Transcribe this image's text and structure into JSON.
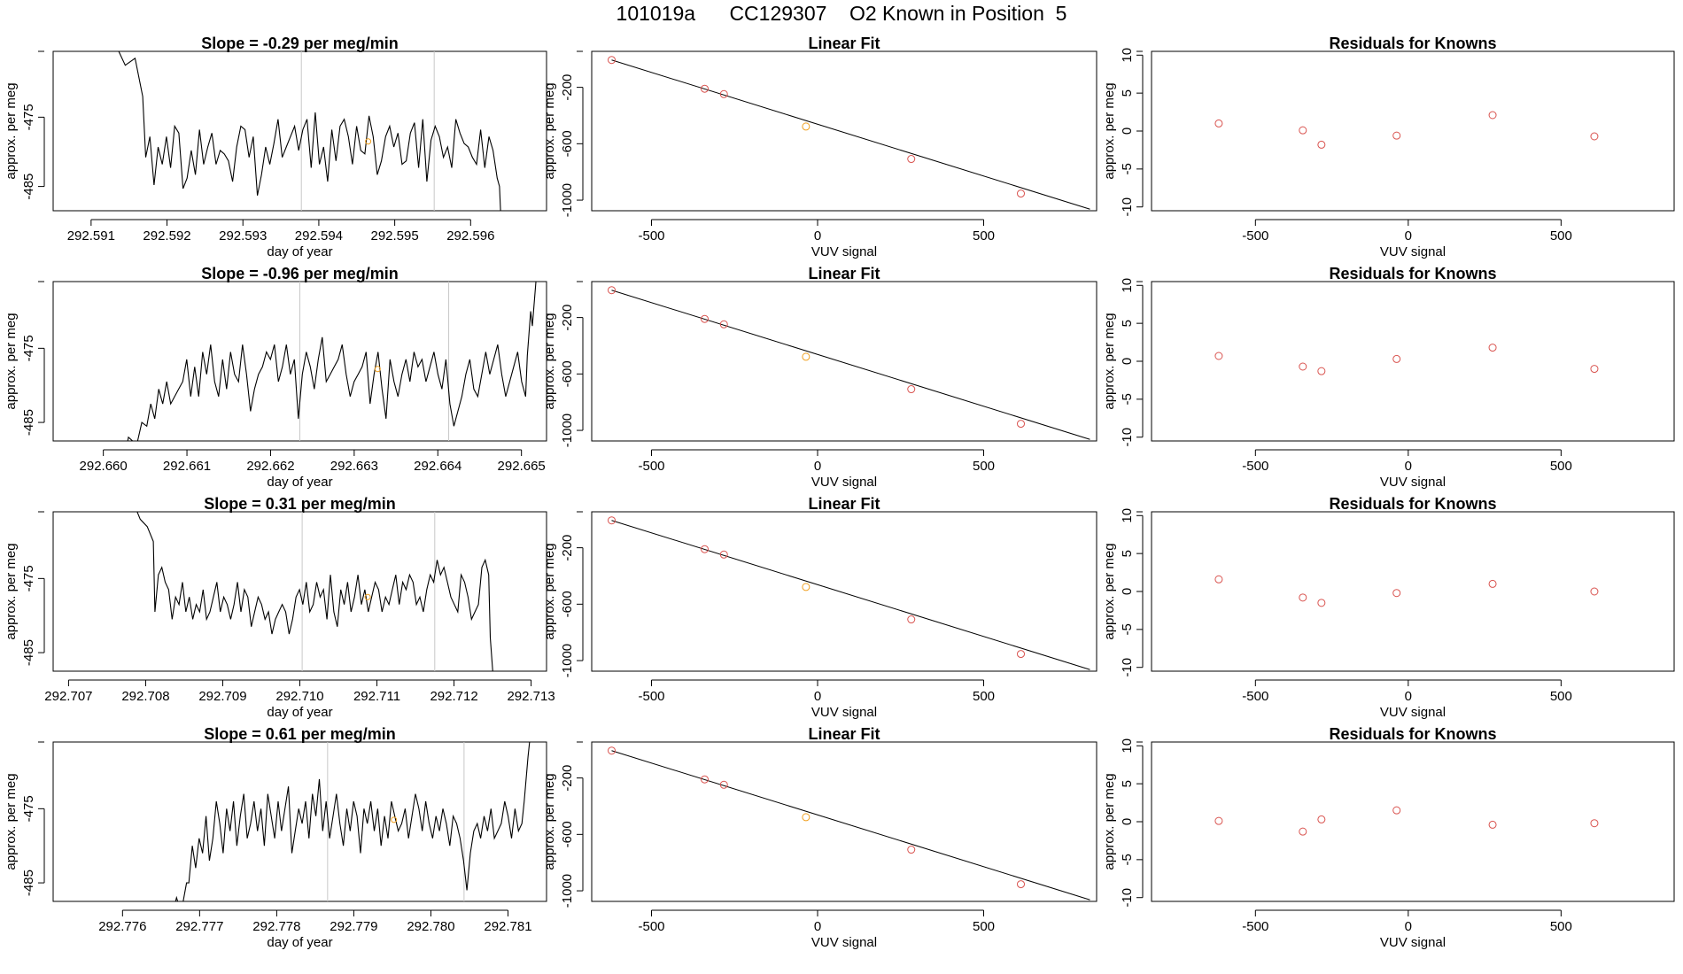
{
  "figure": {
    "run_id": "101019a",
    "cylinder": "CC129307",
    "known_label": "O2 Known in Position  5"
  },
  "colors": {
    "line": "#000000",
    "known": "#d9534f",
    "unknown": "#f0a020",
    "marker": "#c8c8c8"
  },
  "chart_data": [
    {
      "type": "line",
      "row": 0,
      "panel": "timeseries",
      "title_prefix": "Slope = ",
      "slope": "-0.29",
      "title_suffix": " per meg/min",
      "xlabel": "day of year",
      "ylabel": "approx. per meg",
      "xlim": [
        292.5905,
        292.597
      ],
      "ylim": [
        -488.5,
        -465.5
      ],
      "xticks": [
        "292.591",
        "292.592",
        "292.593",
        "292.594",
        "292.595",
        "292.596"
      ],
      "yticks": [
        -475,
        -485
      ],
      "vlines": [
        292.59377,
        292.59552
      ],
      "x_start": 292.5913,
      "x_end": 292.5965,
      "series_start": 292.59172,
      "series_end": 292.59635,
      "center": -478.3,
      "deviations": [
        -2.5,
        0.5,
        -6.5,
        -1,
        -3.5,
        0.5,
        -4,
        2,
        1,
        -7,
        -5.5,
        -1.5,
        -5,
        1.5,
        -3.5,
        -1,
        1,
        -3.5,
        -1.5,
        -2,
        -3,
        -6,
        -1,
        2,
        1.5,
        -2.5,
        0.5,
        -8,
        -5,
        -1,
        -3.5,
        -0.5,
        3,
        -2.5,
        -1,
        0.5,
        2,
        -1.5,
        1.5,
        3,
        -4,
        4,
        -3.5,
        -1,
        -6,
        1.5,
        -3,
        2,
        3,
        0.5,
        -3.5,
        2,
        -1.5,
        -2,
        3.5,
        0.5,
        -5,
        -3,
        0.5,
        2,
        -1,
        1,
        -3.5,
        -3,
        1,
        2.5,
        -4,
        3,
        -6,
        0,
        2,
        0.5,
        -2.5,
        -1,
        -4,
        3,
        1,
        -0.5,
        -1,
        -2.5,
        -3.5,
        1.5,
        -4,
        0.5,
        -1.5,
        -5.5
      ],
      "unknown_point": [
        292.59465,
        -478.5
      ],
      "pre": [
        [
          292.5913,
          -464
        ],
        [
          292.59145,
          -467.5
        ],
        [
          292.59158,
          -466.5
        ],
        [
          292.59168,
          -472
        ]
      ],
      "post": [
        [
          292.59638,
          -485
        ],
        [
          292.5964,
          -490
        ]
      ]
    },
    {
      "type": "scatter",
      "row": 0,
      "panel": "linear_fit",
      "title": "Linear Fit",
      "xlabel": "VUV signal",
      "ylabel": "approx. per meg",
      "xlim": [
        -680,
        840
      ],
      "ylim": [
        -1075,
        55
      ],
      "xticks": [
        -500,
        0,
        500
      ],
      "yticks": [
        -200,
        -600,
        -1000
      ],
      "fit_line": [
        [
          -620,
          -6
        ],
        [
          820,
          -1064
        ]
      ],
      "known_x": [
        -620,
        -340,
        -282,
        282,
        612
      ],
      "known_y": [
        -6,
        -210,
        -248,
        -708,
        -953
      ],
      "unknown": [
        -35,
        -478
      ]
    },
    {
      "type": "scatter",
      "row": 0,
      "panel": "residuals",
      "title": "Residuals for Knowns",
      "xlabel": "VUV signal",
      "ylabel": "approx. per meg",
      "xlim": [
        -840,
        870
      ],
      "ylim": [
        -10.5,
        10.5
      ],
      "xticks": [
        -500,
        0,
        500
      ],
      "yticks": [
        10,
        5,
        0,
        -5,
        -10
      ],
      "known_x": [
        -620,
        -345,
        -284,
        276,
        609
      ],
      "known_y": [
        1.0,
        0.1,
        -1.8,
        2.1,
        -0.7
      ],
      "unknown": [
        -38,
        -0.6
      ]
    },
    {
      "type": "line",
      "row": 1,
      "panel": "timeseries",
      "title_prefix": "Slope = ",
      "slope": "-0.96",
      "title_suffix": " per meg/min",
      "xlabel": "day of year",
      "ylabel": "approx. per meg",
      "xlim": [
        292.6594,
        292.6653
      ],
      "ylim": [
        -487.5,
        -466.0
      ],
      "xticks": [
        "292.660",
        "292.661",
        "292.662",
        "292.663",
        "292.664",
        "292.665"
      ],
      "yticks": [
        -475,
        -485
      ],
      "vlines": [
        292.66235,
        292.66413
      ],
      "x_start": 292.66025,
      "x_end": 292.66518,
      "series_start": 292.66052,
      "series_end": 292.66505,
      "center": -477.5,
      "deviations": [
        -8,
        -5,
        -7,
        -3,
        -5,
        -2,
        -5,
        -4,
        -3,
        -2,
        1,
        -4,
        0,
        -4,
        2,
        -1,
        3,
        -2,
        -4,
        1,
        -3,
        2,
        -1,
        -2,
        3,
        -1,
        -6,
        -3,
        -1,
        0,
        2,
        1,
        3,
        -2,
        0,
        3,
        -1,
        1,
        -7,
        -1,
        2,
        0,
        -3,
        1,
        4,
        -2,
        -1,
        0,
        1,
        3,
        -1,
        -4,
        -2,
        -1,
        0,
        2,
        -5,
        -1,
        2,
        -3,
        -7,
        1,
        -2,
        -4,
        -1,
        1,
        -2,
        2,
        0,
        1,
        -2,
        0,
        2,
        -1,
        -3,
        1,
        -5,
        -8,
        -6,
        -4,
        -1,
        1,
        -3,
        -4,
        -1,
        2,
        -1,
        1,
        3,
        -1,
        -4,
        -2,
        0,
        2,
        -2,
        -4
      ],
      "unknown_point": [
        292.66328,
        -477.8
      ],
      "pre": [
        [
          292.66025,
          -490
        ],
        [
          292.6603,
          -487
        ],
        [
          292.6604,
          -488
        ],
        [
          292.66046,
          -485
        ]
      ],
      "post": [
        [
          292.66507,
          -476
        ],
        [
          292.66511,
          -470
        ],
        [
          292.66513,
          -472
        ],
        [
          292.66518,
          -465
        ]
      ]
    },
    {
      "type": "scatter",
      "row": 1,
      "panel": "linear_fit",
      "title": "Linear Fit",
      "xlabel": "VUV signal",
      "ylabel": "approx. per meg",
      "xlim": [
        -680,
        840
      ],
      "ylim": [
        -1075,
        55
      ],
      "xticks": [
        -500,
        0,
        500
      ],
      "yticks": [
        -200,
        -600,
        -1000
      ],
      "fit_line": [
        [
          -620,
          -6
        ],
        [
          820,
          -1064
        ]
      ],
      "known_x": [
        -620,
        -340,
        -282,
        282,
        612
      ],
      "known_y": [
        -6,
        -210,
        -248,
        -708,
        -953
      ],
      "unknown": [
        -35,
        -478
      ]
    },
    {
      "type": "scatter",
      "row": 1,
      "panel": "residuals",
      "title": "Residuals for Knowns",
      "xlabel": "VUV signal",
      "ylabel": "approx. per meg",
      "xlim": [
        -840,
        870
      ],
      "ylim": [
        -10.5,
        10.5
      ],
      "xticks": [
        -500,
        0,
        500
      ],
      "yticks": [
        10,
        5,
        0,
        -5,
        -10
      ],
      "known_x": [
        -620,
        -345,
        -284,
        276,
        609
      ],
      "known_y": [
        0.7,
        -0.7,
        -1.3,
        1.8,
        -1.0
      ],
      "unknown": [
        -38,
        0.3
      ]
    },
    {
      "type": "line",
      "row": 2,
      "panel": "timeseries",
      "title_prefix": "Slope = ",
      "slope": "0.31",
      "title_suffix": " per meg/min",
      "xlabel": "day of year",
      "ylabel": "approx. per meg",
      "xlim": [
        292.7068,
        292.7132
      ],
      "ylim": [
        -487.5,
        -466.0
      ],
      "xticks": [
        "292.707",
        "292.708",
        "292.709",
        "292.710",
        "292.711",
        "292.712",
        "292.713"
      ],
      "yticks": [
        -475,
        -485
      ],
      "vlines": [
        292.71003,
        292.71175
      ],
      "x_start": 292.70785,
      "x_end": 292.71257,
      "series_start": 292.70812,
      "series_end": 292.71245,
      "center": -477.5,
      "deviations": [
        -2,
        3,
        4,
        2,
        1,
        -3,
        0,
        -1,
        2,
        -2,
        0,
        -3,
        -1,
        -2,
        1,
        -3,
        -2,
        0,
        2,
        -2,
        0,
        -1,
        -3,
        -1,
        2,
        -2,
        1,
        0,
        -4,
        -2,
        0,
        -1,
        -3,
        -2,
        -5,
        -3,
        -2,
        -1,
        -2,
        -5,
        -3,
        0,
        1,
        -1,
        2,
        -2,
        -1,
        2,
        0,
        1,
        -3,
        3,
        -2,
        -4,
        1,
        -1,
        2,
        -2,
        0,
        3,
        -1,
        1,
        -2,
        0,
        2,
        1,
        -2,
        0,
        -1,
        1,
        3,
        -1,
        2,
        1,
        3,
        2,
        -1,
        0,
        -2,
        1,
        3,
        2,
        5,
        3,
        4,
        2,
        0,
        -1,
        -2,
        3,
        2,
        0,
        -3,
        -2,
        -1,
        4,
        5,
        3
      ],
      "unknown_point": [
        292.71088,
        -477.5
      ],
      "pre": [
        [
          292.70785,
          -465
        ],
        [
          292.70793,
          -467
        ],
        [
          292.70802,
          -468
        ],
        [
          292.7081,
          -470
        ]
      ],
      "post": [
        [
          292.71247,
          -483
        ],
        [
          292.71252,
          -490
        ]
      ]
    },
    {
      "type": "scatter",
      "row": 2,
      "panel": "linear_fit",
      "title": "Linear Fit",
      "xlabel": "VUV signal",
      "ylabel": "approx. per meg",
      "xlim": [
        -680,
        840
      ],
      "ylim": [
        -1075,
        55
      ],
      "xticks": [
        -500,
        0,
        500
      ],
      "yticks": [
        -200,
        -600,
        -1000
      ],
      "fit_line": [
        [
          -620,
          -6
        ],
        [
          820,
          -1064
        ]
      ],
      "known_x": [
        -620,
        -340,
        -282,
        282,
        612
      ],
      "known_y": [
        -6,
        -210,
        -248,
        -708,
        -953
      ],
      "unknown": [
        -35,
        -478
      ]
    },
    {
      "type": "scatter",
      "row": 2,
      "panel": "residuals",
      "title": "Residuals for Knowns",
      "xlabel": "VUV signal",
      "ylabel": "approx. per meg",
      "xlim": [
        -840,
        870
      ],
      "ylim": [
        -10.5,
        10.5
      ],
      "xticks": [
        -500,
        0,
        500
      ],
      "yticks": [
        10,
        5,
        0,
        -5,
        -10
      ],
      "known_x": [
        -620,
        -345,
        -284,
        276,
        609
      ],
      "known_y": [
        1.6,
        -0.8,
        -1.5,
        1.0,
        0.0
      ],
      "unknown": [
        -38,
        -0.2
      ]
    },
    {
      "type": "line",
      "row": 3,
      "panel": "timeseries",
      "title_prefix": "Slope = ",
      "slope": "0.61",
      "title_suffix": " per meg/min",
      "xlabel": "day of year",
      "ylabel": "approx. per meg",
      "xlim": [
        292.7751,
        292.7815
      ],
      "ylim": [
        -487.5,
        -466.0
      ],
      "xticks": [
        "292.776",
        "292.777",
        "292.778",
        "292.779",
        "292.780",
        "292.781"
      ],
      "yticks": [
        -475,
        -485
      ],
      "vlines": [
        292.77866,
        292.78043
      ],
      "x_start": 292.7766,
      "x_end": 292.7813,
      "series_start": 292.77686,
      "series_end": 292.78118,
      "center": -477.0,
      "deviations": [
        -8,
        -3,
        -6,
        -2,
        -4,
        1,
        -5,
        -2,
        3,
        0,
        -4,
        2,
        -1,
        3,
        -3,
        1,
        4,
        -2,
        0,
        3,
        -1,
        2,
        -3,
        4,
        1,
        -2,
        3,
        -1,
        2,
        5,
        -4,
        -1,
        2,
        0,
        3,
        -2,
        4,
        1,
        6,
        -1,
        3,
        -2,
        1,
        4,
        0,
        -3,
        2,
        -1,
        3,
        1,
        -4,
        2,
        0,
        3,
        -1,
        2,
        -3,
        1,
        -2,
        3,
        1,
        -1,
        0,
        2,
        -2,
        1,
        4,
        2,
        -1,
        3,
        0,
        -2,
        1,
        -1,
        2,
        0,
        -3,
        1,
        0,
        -2,
        -5,
        -9,
        -4,
        -1,
        0,
        -2,
        1,
        -1,
        2,
        -2,
        -1,
        0,
        3,
        1,
        -2,
        2,
        -1,
        0
      ],
      "unknown_point": [
        292.77952,
        -476.5
      ],
      "pre": [
        [
          292.7766,
          -491
        ],
        [
          292.7767,
          -487
        ],
        [
          292.77676,
          -489
        ],
        [
          292.77683,
          -485
        ]
      ],
      "post": [
        [
          292.78121,
          -474
        ],
        [
          292.78126,
          -468
        ],
        [
          292.7813,
          -464
        ]
      ]
    },
    {
      "type": "scatter",
      "row": 3,
      "panel": "linear_fit",
      "title": "Linear Fit",
      "xlabel": "VUV signal",
      "ylabel": "approx. per meg",
      "xlim": [
        -680,
        840
      ],
      "ylim": [
        -1075,
        55
      ],
      "xticks": [
        -500,
        0,
        500
      ],
      "yticks": [
        -200,
        -600,
        -1000
      ],
      "fit_line": [
        [
          -620,
          -6
        ],
        [
          820,
          -1064
        ]
      ],
      "known_x": [
        -620,
        -340,
        -282,
        282,
        612
      ],
      "known_y": [
        -6,
        -210,
        -248,
        -708,
        -953
      ],
      "unknown": [
        -35,
        -478
      ]
    },
    {
      "type": "scatter",
      "row": 3,
      "panel": "residuals",
      "title": "Residuals for Knowns",
      "xlabel": "VUV signal",
      "ylabel": "approx. per meg",
      "xlim": [
        -840,
        870
      ],
      "ylim": [
        -10.5,
        10.5
      ],
      "xticks": [
        -500,
        0,
        500
      ],
      "yticks": [
        10,
        5,
        0,
        -5,
        -10
      ],
      "known_x": [
        -620,
        -345,
        -284,
        276,
        609
      ],
      "known_y": [
        0.1,
        -1.3,
        0.3,
        -0.4,
        -0.2
      ],
      "unknown": [
        -38,
        1.5
      ]
    }
  ]
}
